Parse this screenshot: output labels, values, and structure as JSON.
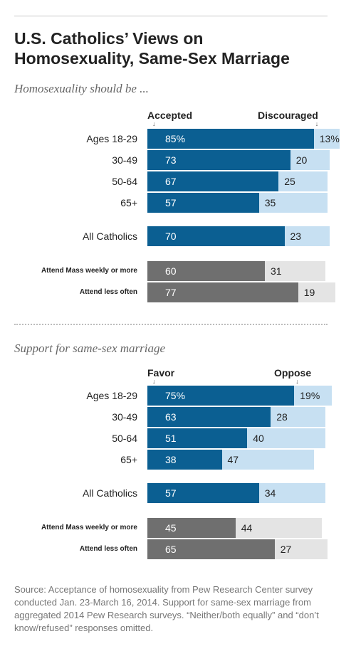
{
  "title_line1": "U.S. Catholics’ Views on",
  "title_line2": "Homosexuality, Same-Sex Marriage",
  "note": "Source: Acceptance of homosexuality from Pew Research Center survey conducted Jan. 23-March 16, 2014. Support for same-sex marriage from aggregated 2014 Pew Research surveys. “Neither/both equally” and “don’t know/refused” responses omitted.",
  "colors": {
    "primary": "#0b5f92",
    "secondary": "#c7e0f2",
    "mass_primary": "#6f6f6f",
    "mass_secondary": "#e4e4e4"
  },
  "tick_glyph": "↓",
  "chart_data": [
    {
      "type": "bar",
      "subtitle": "Homosexuality should be ...",
      "left_heading": "Accepted",
      "right_heading": "Discouraged",
      "categories": [
        "Ages 18-29",
        "30-49",
        "50-64",
        "65+",
        "All Catholics",
        "Attend Mass weekly or more",
        "Attend less often"
      ],
      "value_labels_left": [
        "85%",
        "73",
        "67",
        "57",
        "70",
        "60",
        "77"
      ],
      "value_labels_right": [
        "13%",
        "20",
        "25",
        "35",
        "23",
        "31",
        "19"
      ],
      "series": [
        {
          "name": "Accepted",
          "values": [
            85,
            73,
            67,
            57,
            70,
            60,
            77
          ]
        },
        {
          "name": "Discouraged",
          "values": [
            13,
            20,
            25,
            35,
            23,
            31,
            19
          ]
        }
      ]
    },
    {
      "type": "bar",
      "subtitle": "Support for same-sex marriage",
      "left_heading": "Favor",
      "right_heading": "Oppose",
      "categories": [
        "Ages 18-29",
        "30-49",
        "50-64",
        "65+",
        "All Catholics",
        "Attend Mass weekly or more",
        "Attend less often"
      ],
      "value_labels_left": [
        "75%",
        "63",
        "51",
        "38",
        "57",
        "45",
        "65"
      ],
      "value_labels_right": [
        "19%",
        "28",
        "40",
        "47",
        "34",
        "44",
        "27"
      ],
      "series": [
        {
          "name": "Favor",
          "values": [
            75,
            63,
            51,
            38,
            57,
            45,
            65
          ]
        },
        {
          "name": "Oppose",
          "values": [
            19,
            28,
            40,
            47,
            34,
            44,
            27
          ]
        }
      ]
    }
  ]
}
